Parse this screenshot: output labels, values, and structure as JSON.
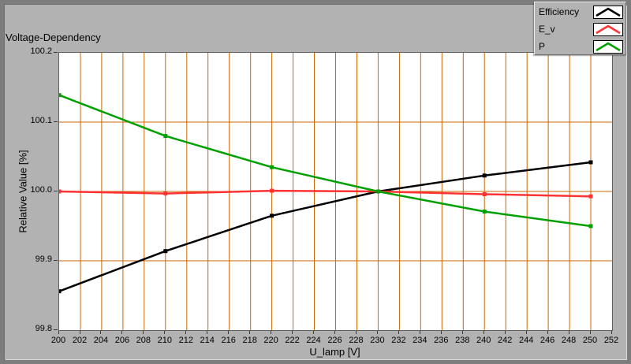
{
  "window": {
    "title": "Voltage-Dependency"
  },
  "colors": {
    "panel_bg": "#b2b2b2",
    "frame_border": "#7d7d7d",
    "plot_bg": "#ffffff",
    "grid": "#cc6600",
    "series_efficiency": "#000000",
    "series_ev": "#ff3333",
    "series_p": "#00a000"
  },
  "legend": {
    "items": [
      {
        "label": "Efficiency",
        "color": "#000000"
      },
      {
        "label": "E_v",
        "color": "#ff3333"
      },
      {
        "label": "P",
        "color": "#00a000"
      }
    ]
  },
  "chart_data": {
    "type": "line",
    "title": "Voltage-Dependency",
    "xlabel": "U_lamp [V]",
    "ylabel": "Relative Value [%]",
    "xlim": [
      200,
      252
    ],
    "ylim": [
      99.8,
      100.2
    ],
    "x_ticks": [
      200,
      202,
      204,
      206,
      208,
      210,
      212,
      214,
      216,
      218,
      220,
      222,
      224,
      226,
      228,
      230,
      232,
      234,
      236,
      238,
      240,
      242,
      244,
      246,
      248,
      250,
      252
    ],
    "y_ticks": [
      99.8,
      99.9,
      100.0,
      100.1,
      100.2
    ],
    "grid": true,
    "grid_color": "#cc6600",
    "legend_position": "top-right",
    "x": [
      200,
      210,
      220,
      230,
      240,
      250
    ],
    "series": [
      {
        "name": "Efficiency",
        "color": "#000000",
        "values": [
          99.856,
          99.914,
          99.965,
          100.0,
          100.023,
          100.042
        ]
      },
      {
        "name": "E_v",
        "color": "#ff3333",
        "values": [
          100.0,
          99.997,
          100.001,
          100.0,
          99.996,
          99.993
        ]
      },
      {
        "name": "P",
        "color": "#00a000",
        "values": [
          100.139,
          100.08,
          100.035,
          100.0,
          99.971,
          99.95
        ]
      }
    ]
  }
}
